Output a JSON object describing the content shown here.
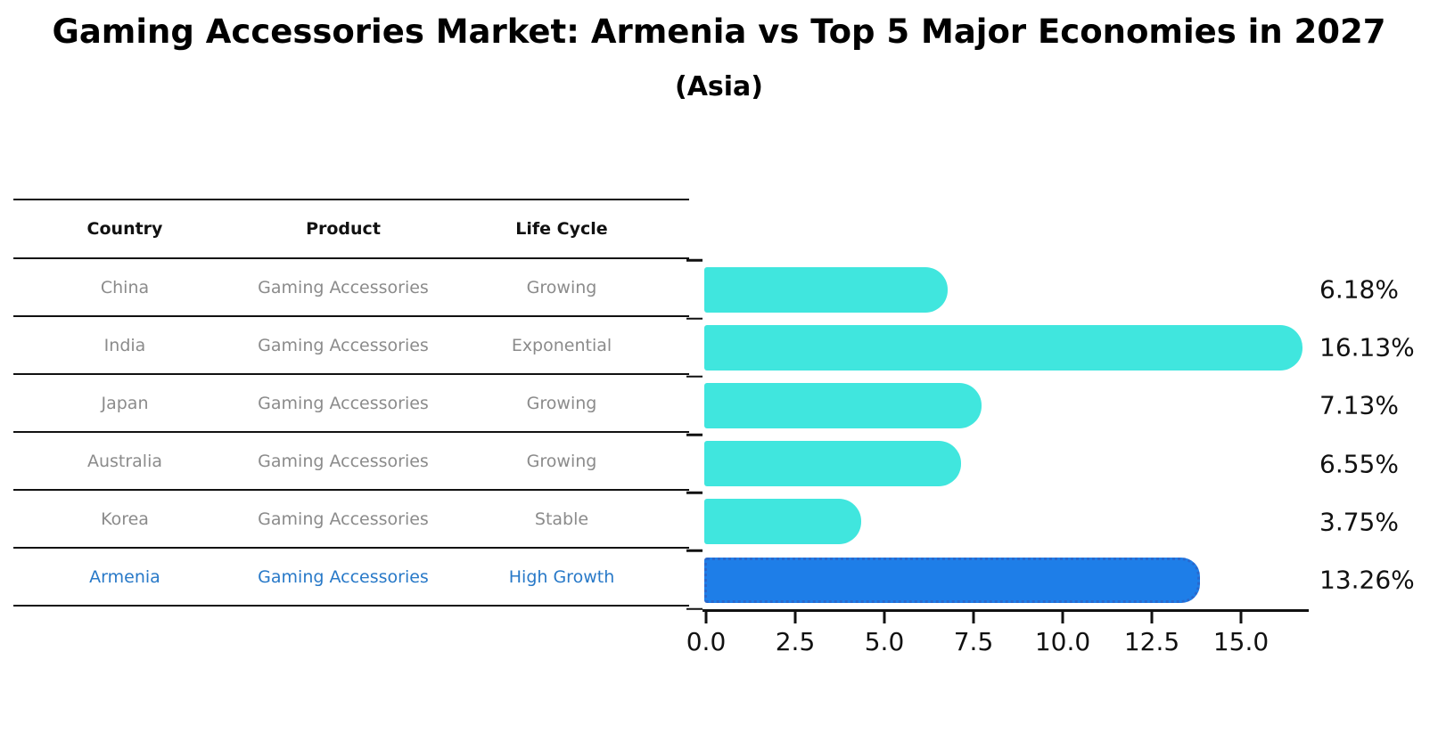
{
  "header": {
    "title": "Gaming Accessories Market: Armenia vs Top 5 Major Economies in 2027",
    "subtitle": "(Asia)"
  },
  "table": {
    "columns": [
      "Country",
      "Product",
      "Life Cycle"
    ],
    "rows": [
      {
        "country": "China",
        "product": "Gaming Accessories",
        "life_cycle": "Growing",
        "highlight": false
      },
      {
        "country": "India",
        "product": "Gaming Accessories",
        "life_cycle": "Exponential",
        "highlight": false
      },
      {
        "country": "Japan",
        "product": "Gaming Accessories",
        "life_cycle": "Growing",
        "highlight": false
      },
      {
        "country": "Australia",
        "product": "Gaming Accessories",
        "life_cycle": "Growing",
        "highlight": false
      },
      {
        "country": "Korea",
        "product": "Gaming Accessories",
        "life_cycle": "Stable",
        "highlight": false
      },
      {
        "country": "Armenia",
        "product": "Gaming Accessories",
        "life_cycle": "High Growth",
        "highlight": true
      }
    ]
  },
  "chart_data": {
    "type": "bar",
    "orientation": "horizontal",
    "title": "Gaming Accessories Market: Armenia vs Top 5 Major Economies in 2027",
    "subtitle": "(Asia)",
    "categories": [
      "China",
      "India",
      "Japan",
      "Australia",
      "Korea",
      "Armenia"
    ],
    "values": [
      6.18,
      16.13,
      7.13,
      6.55,
      3.75,
      13.26
    ],
    "value_labels": [
      "6.18%",
      "16.13%",
      "7.13%",
      "6.55%",
      "3.75%",
      "13.26%"
    ],
    "x_ticks": [
      "0.0",
      "2.5",
      "5.0",
      "7.5",
      "10.0",
      "12.5",
      "15.0"
    ],
    "x_tick_values": [
      0,
      2.5,
      5,
      7.5,
      10,
      12.5,
      15
    ],
    "xlim": [
      0,
      16.9
    ],
    "grid": false,
    "legend": false,
    "highlight_index": 5,
    "bar_color": "#40e6de",
    "highlight_color": "#1e7ee8",
    "highlight_border_color": "#2a68cc",
    "highlight_text_color": "#2879c8",
    "table_text_color": "#8b8b8b",
    "axis_color": "#111111"
  }
}
